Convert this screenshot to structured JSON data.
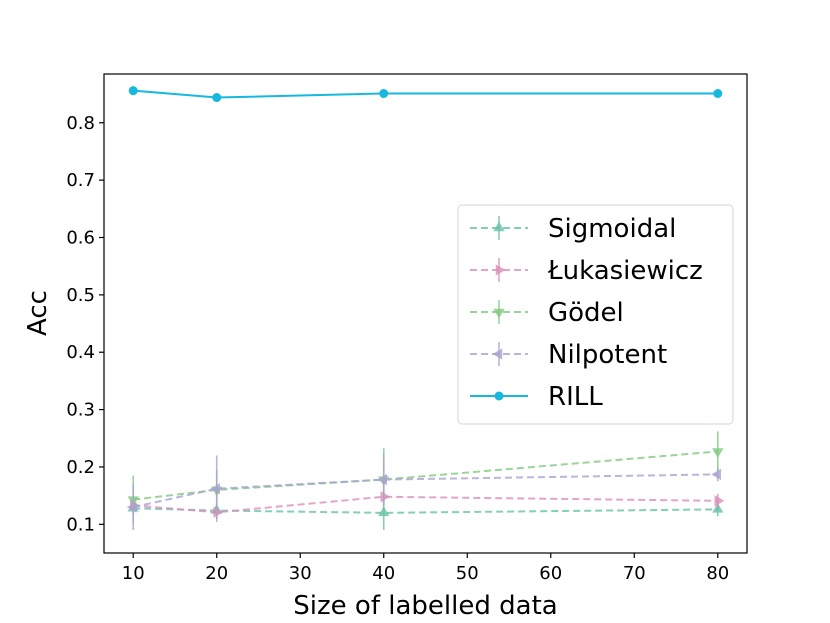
{
  "chart_data": {
    "type": "line",
    "title": "",
    "xlabel": "Size of labelled data",
    "ylabel": "Acc",
    "xlim": [
      6.5,
      83.5
    ],
    "ylim": [
      0.05,
      0.885
    ],
    "xticks": [
      10,
      20,
      30,
      40,
      50,
      60,
      70,
      80
    ],
    "xtick_labels": [
      "10",
      "20",
      "30",
      "40",
      "50",
      "60",
      "70",
      "80"
    ],
    "yticks": [
      0.1,
      0.2,
      0.3,
      0.4,
      0.5,
      0.6,
      0.7,
      0.8
    ],
    "ytick_labels": [
      "0.1",
      "0.2",
      "0.3",
      "0.4",
      "0.5",
      "0.6",
      "0.7",
      "0.8"
    ],
    "grid": false,
    "legend_position": "center-right",
    "x": [
      10,
      20,
      40,
      80
    ],
    "series": [
      {
        "name": "Sigmoidal",
        "marker": "triangle-up",
        "style": "dashed",
        "color": "#66c2a5",
        "values": [
          0.128,
          0.124,
          0.12,
          0.126
        ],
        "errors": [
          0.012,
          0.012,
          0.03,
          0.012
        ]
      },
      {
        "name": "Łukasiewicz",
        "marker": "triangle-right",
        "style": "dashed",
        "color": "#d98fba",
        "values": [
          0.133,
          0.121,
          0.148,
          0.141
        ],
        "errors": [
          0.012,
          0.012,
          0.012,
          0.012
        ]
      },
      {
        "name": "Gödel",
        "marker": "triangle-down",
        "style": "dashed",
        "color": "#7fc97f",
        "values": [
          0.143,
          0.16,
          0.178,
          0.227
        ],
        "errors": [
          0.042,
          0.035,
          0.055,
          0.035
        ]
      },
      {
        "name": "Nilpotent",
        "marker": "triangle-left",
        "style": "dashed",
        "color": "#a9a2d0",
        "values": [
          0.13,
          0.162,
          0.178,
          0.187
        ],
        "errors": [
          0.04,
          0.058,
          0.045,
          0.012
        ]
      },
      {
        "name": "RILL",
        "marker": "circle",
        "style": "solid",
        "color": "#17b8e0",
        "values": [
          0.856,
          0.844,
          0.851,
          0.851
        ],
        "errors": [
          0,
          0,
          0,
          0
        ]
      }
    ]
  }
}
